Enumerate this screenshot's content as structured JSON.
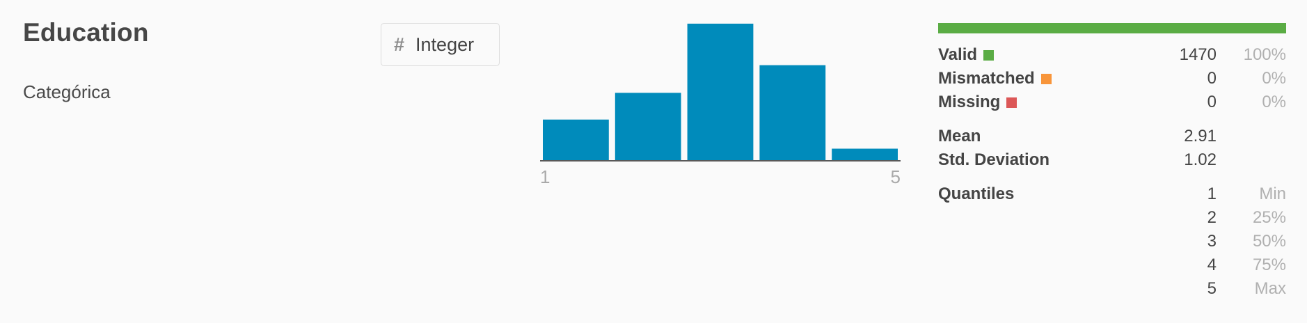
{
  "column": {
    "name": "Education",
    "description": "Categórica",
    "type_icon": "hash-icon",
    "type_label": "Integer"
  },
  "chart_data": {
    "type": "bar",
    "categories": [
      "1",
      "2",
      "3",
      "4",
      "5"
    ],
    "values": [
      170,
      282,
      572,
      398,
      48
    ],
    "xlabel": "",
    "ylabel": "",
    "tick_labels": {
      "min": "1",
      "max": "5"
    },
    "color": "#008bbb",
    "grid": false
  },
  "stats": {
    "quality_bar": [
      {
        "name": "valid",
        "fraction": 1.0,
        "color": "#5aac44"
      },
      {
        "name": "mismatched",
        "fraction": 0.0,
        "color": "#f8953a"
      },
      {
        "name": "missing",
        "fraction": 0.0,
        "color": "#dc5757"
      }
    ],
    "valid": {
      "label": "Valid",
      "value": "1470",
      "pct": "100%",
      "color": "#5aac44"
    },
    "mismatched": {
      "label": "Mismatched",
      "value": "0",
      "pct": "0%",
      "color": "#f8953a"
    },
    "missing": {
      "label": "Missing",
      "value": "0",
      "pct": "0%",
      "color": "#dc5757"
    },
    "mean": {
      "label": "Mean",
      "value": "2.91"
    },
    "std": {
      "label": "Std. Deviation",
      "value": "1.02"
    },
    "quantiles_label": "Quantiles",
    "quantiles": [
      {
        "value": "1",
        "name": "Min"
      },
      {
        "value": "2",
        "name": "25%"
      },
      {
        "value": "3",
        "name": "50%"
      },
      {
        "value": "4",
        "name": "75%"
      },
      {
        "value": "5",
        "name": "Max"
      }
    ]
  }
}
